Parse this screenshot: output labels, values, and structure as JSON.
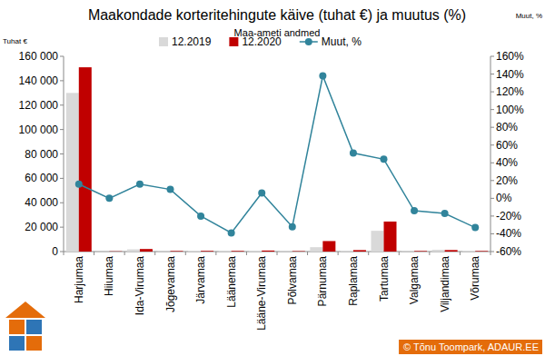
{
  "chart_data": {
    "type": "bar",
    "title": "Maakondade korteritehingute käive (tuhat €) ja muutus (%)",
    "subtitle": "Maa-ameti andmed",
    "y_label": "Tuhat €",
    "y2_label": "Muut, %",
    "source": "© Tõnu Toompark, ADAUR.EE",
    "categories": [
      "Harjumaa",
      "Hiiumaa",
      "Ida-Virumaa",
      "Jõgevamaa",
      "Järvamaa",
      "Läänemaa",
      "Lääne-Virumaa",
      "Põlvamaa",
      "Pärnumaa",
      "Raplamaa",
      "Tartumaa",
      "Valgamaa",
      "Viljandimaa",
      "Võrumaa"
    ],
    "series": [
      {
        "name": "12.2019",
        "color": "#d9d9d9",
        "type": "bar",
        "values": [
          130000,
          200,
          1800,
          400,
          700,
          800,
          800,
          500,
          3600,
          800,
          17000,
          500,
          1500,
          700
        ]
      },
      {
        "name": "12.2020",
        "color": "#c00000",
        "type": "bar",
        "values": [
          151000,
          200,
          2100,
          450,
          550,
          500,
          850,
          350,
          8600,
          1200,
          24600,
          450,
          1250,
          450
        ]
      },
      {
        "name": "Muut, %",
        "color": "#31849b",
        "type": "line",
        "axis": "y2",
        "marker": "circle",
        "values": [
          16,
          0,
          16,
          10,
          -20,
          -39,
          6,
          -32,
          138,
          51,
          44,
          -14,
          -17,
          -33
        ]
      }
    ],
    "ylim": [
      0,
      160000
    ],
    "yticks": [
      0,
      {
        "value": 20000,
        "label": "20 000"
      },
      {
        "value": 40000,
        "label": "40 000"
      },
      {
        "value": 60000,
        "label": "60 000"
      },
      {
        "value": 80000,
        "label": "80 000"
      },
      {
        "value": 100000,
        "label": "100 000"
      },
      {
        "value": 120000,
        "label": "120 000"
      },
      {
        "value": 140000,
        "label": "140 000"
      },
      {
        "value": 160000,
        "label": "160 000"
      }
    ],
    "y2lim": [
      -60,
      160
    ],
    "y2ticks": [
      {
        "value": -60,
        "label": "-60%"
      },
      {
        "value": -40,
        "label": "-40%"
      },
      {
        "value": -20,
        "label": "-20%"
      },
      {
        "value": 0,
        "label": "0%"
      },
      {
        "value": 20,
        "label": "20%"
      },
      {
        "value": 40,
        "label": "40%"
      },
      {
        "value": 60,
        "label": "60%"
      },
      {
        "value": 80,
        "label": "80%"
      },
      {
        "value": 100,
        "label": "100%"
      },
      {
        "value": 120,
        "label": "120%"
      },
      {
        "value": 140,
        "label": "140%"
      },
      {
        "value": 160,
        "label": "160%"
      }
    ],
    "grid": false,
    "legend": "top"
  }
}
